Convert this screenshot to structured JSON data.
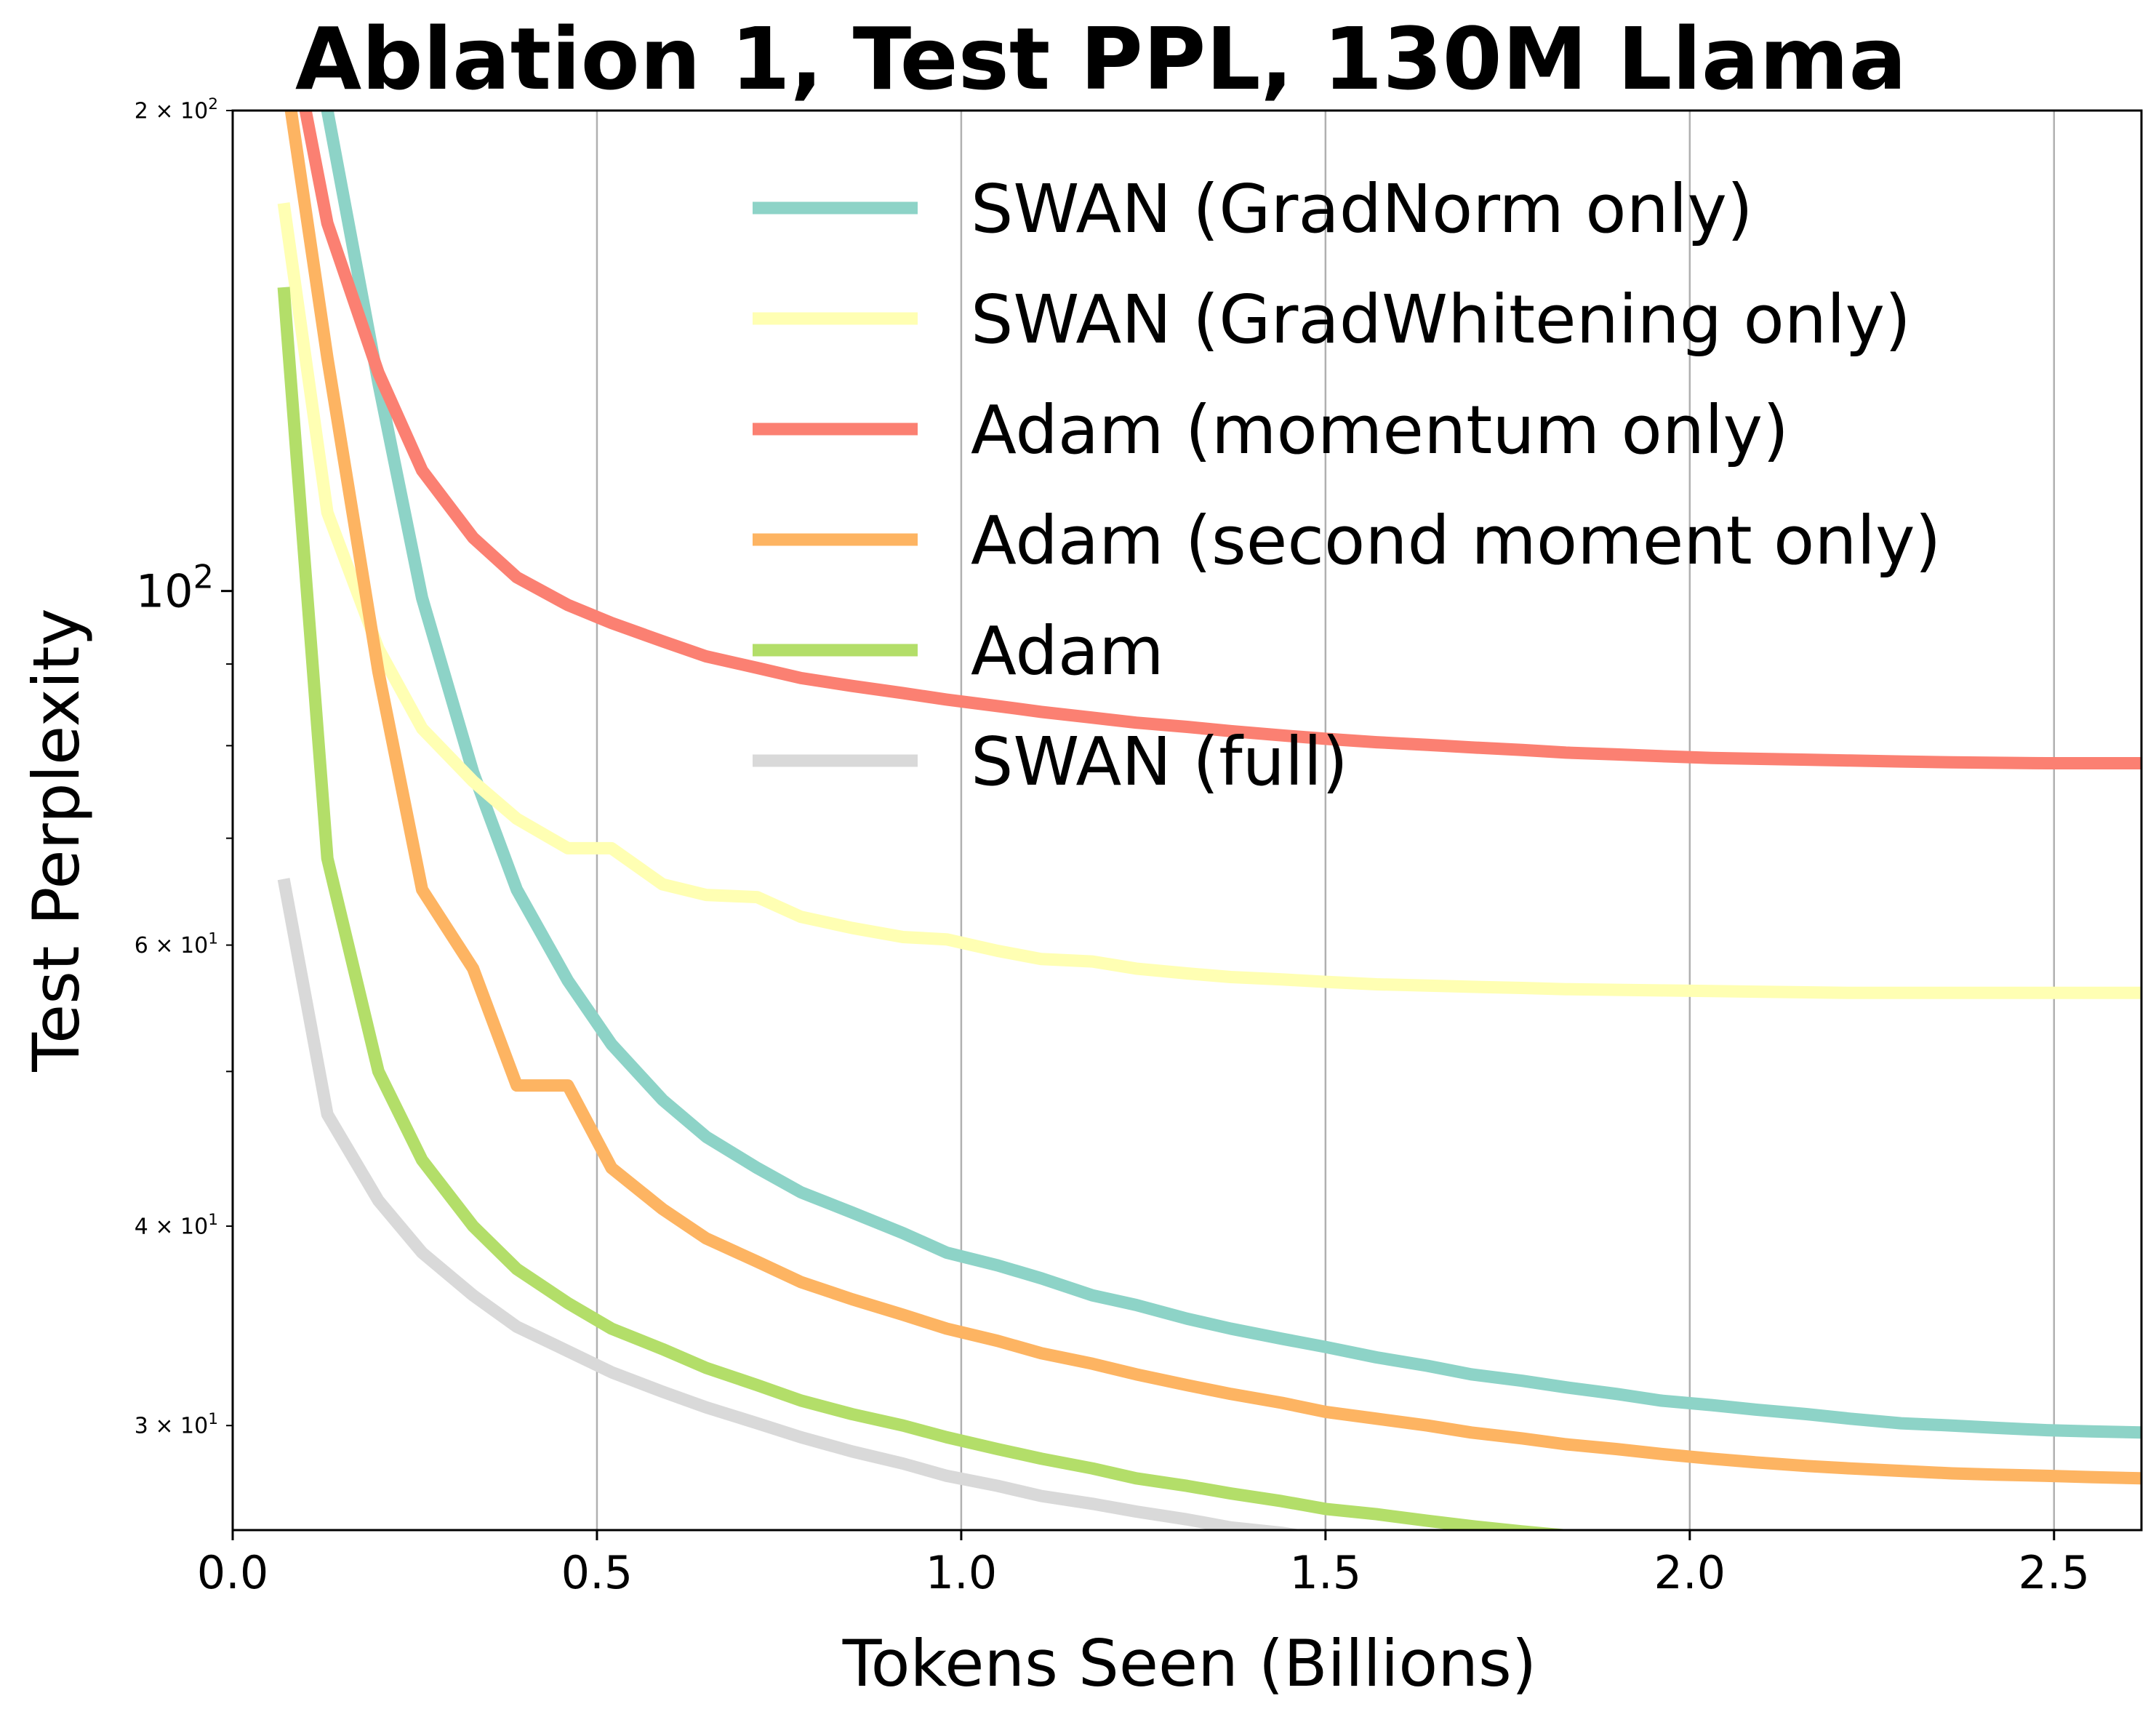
{
  "chart_data": {
    "type": "line",
    "title": "Ablation 1, Test PPL, 130M Llama",
    "xlabel": "Tokens Seen (Billions)",
    "ylabel": "Test Perplexity",
    "xlim": [
      0.0,
      2.62
    ],
    "ylim": [
      25.8,
      200
    ],
    "yscale": "log",
    "grid": "vertical",
    "legend_position": "upper-right",
    "x_ticks": [
      {
        "value": 0.0,
        "label": "0.0"
      },
      {
        "value": 0.5,
        "label": "0.5"
      },
      {
        "value": 1.0,
        "label": "1.0"
      },
      {
        "value": 1.5,
        "label": "1.5"
      },
      {
        "value": 2.0,
        "label": "2.0"
      },
      {
        "value": 2.5,
        "label": "2.5"
      }
    ],
    "y_ticks": [
      {
        "value": 200,
        "base": "2 × 10",
        "exp": "2",
        "major": false
      },
      {
        "value": 100,
        "base": "10",
        "exp": "2",
        "major": true
      },
      {
        "value": 60,
        "base": "6 × 10",
        "exp": "1",
        "major": false
      },
      {
        "value": 40,
        "base": "4 × 10",
        "exp": "1",
        "major": false
      },
      {
        "value": 30,
        "base": "3 × 10",
        "exp": "1",
        "major": false
      }
    ],
    "y_minor_tick_values": [
      50,
      70,
      80,
      90
    ],
    "series": [
      {
        "name": "SWAN (GradNorm only)",
        "color": "#8dd3c7",
        "x": [
          0.13,
          0.2,
          0.26,
          0.33,
          0.39,
          0.46,
          0.52,
          0.59,
          0.65,
          0.72,
          0.78,
          0.85,
          0.92,
          0.98,
          1.05,
          1.11,
          1.18,
          1.24,
          1.31,
          1.37,
          1.44,
          1.5,
          1.57,
          1.64,
          1.7,
          1.77,
          1.83,
          1.9,
          1.96,
          2.03,
          2.09,
          2.16,
          2.22,
          2.29,
          2.36,
          2.42,
          2.49,
          2.55,
          2.62
        ],
        "y": [
          200,
          135,
          99,
          77,
          65,
          57,
          52,
          48,
          45.5,
          43.5,
          42,
          40.8,
          39.6,
          38.5,
          37.8,
          37.1,
          36.2,
          35.7,
          35,
          34.5,
          34,
          33.6,
          33.1,
          32.7,
          32.3,
          32,
          31.7,
          31.4,
          31.1,
          30.9,
          30.7,
          30.5,
          30.3,
          30.1,
          30,
          29.9,
          29.8,
          29.75,
          29.7
        ]
      },
      {
        "name": "SWAN (GradWhitening only)",
        "color": "#ffffb3",
        "x": [
          0.07,
          0.13,
          0.2,
          0.26,
          0.33,
          0.39,
          0.46,
          0.52,
          0.59,
          0.65,
          0.72,
          0.78,
          0.85,
          0.92,
          0.98,
          1.05,
          1.11,
          1.18,
          1.24,
          1.31,
          1.37,
          1.44,
          1.5,
          1.57,
          1.64,
          1.7,
          1.77,
          1.83,
          1.9,
          1.96,
          2.03,
          2.09,
          2.16,
          2.22,
          2.29,
          2.36,
          2.42,
          2.49,
          2.55,
          2.62
        ],
        "y": [
          175,
          112,
          92,
          82,
          76,
          72,
          69,
          69,
          65.5,
          64.5,
          64.3,
          62.5,
          61.5,
          60.7,
          60.5,
          59.5,
          58.8,
          58.6,
          58,
          57.6,
          57.3,
          57.1,
          56.9,
          56.7,
          56.6,
          56.5,
          56.4,
          56.3,
          56.25,
          56.2,
          56.15,
          56.1,
          56.05,
          56,
          56,
          56,
          56,
          56,
          56,
          56
        ]
      },
      {
        "name": "Adam (momentum only)",
        "color": "#fb8072",
        "x": [
          0.1,
          0.13,
          0.2,
          0.26,
          0.33,
          0.39,
          0.46,
          0.52,
          0.59,
          0.65,
          0.72,
          0.78,
          0.85,
          0.92,
          0.98,
          1.05,
          1.11,
          1.18,
          1.24,
          1.31,
          1.37,
          1.44,
          1.5,
          1.57,
          1.64,
          1.7,
          1.77,
          1.83,
          1.9,
          1.96,
          2.03,
          2.09,
          2.16,
          2.22,
          2.29,
          2.36,
          2.42,
          2.49,
          2.55,
          2.62
        ],
        "y": [
          200,
          170,
          137,
          119,
          108,
          102,
          98,
          95.5,
          93,
          91,
          89.5,
          88.2,
          87.2,
          86.3,
          85.5,
          84.7,
          84,
          83.3,
          82.7,
          82.2,
          81.7,
          81.2,
          80.8,
          80.4,
          80.1,
          79.8,
          79.5,
          79.2,
          79,
          78.8,
          78.6,
          78.5,
          78.4,
          78.3,
          78.2,
          78.1,
          78.05,
          78,
          78,
          78
        ]
      },
      {
        "name": "Adam (second moment only)",
        "color": "#fdb462",
        "x": [
          0.08,
          0.13,
          0.2,
          0.26,
          0.33,
          0.39,
          0.46,
          0.52,
          0.59,
          0.65,
          0.72,
          0.78,
          0.85,
          0.92,
          0.98,
          1.05,
          1.11,
          1.18,
          1.24,
          1.31,
          1.37,
          1.44,
          1.5,
          1.57,
          1.64,
          1.7,
          1.77,
          1.83,
          1.9,
          1.96,
          2.03,
          2.09,
          2.16,
          2.22,
          2.29,
          2.36,
          2.42,
          2.49,
          2.55,
          2.62
        ],
        "y": [
          200,
          140,
          89,
          65,
          58,
          49,
          49,
          43.5,
          41,
          39.3,
          38,
          36.9,
          36,
          35.2,
          34.5,
          33.9,
          33.3,
          32.8,
          32.3,
          31.8,
          31.4,
          31,
          30.6,
          30.3,
          30,
          29.7,
          29.45,
          29.2,
          29,
          28.8,
          28.6,
          28.45,
          28.3,
          28.2,
          28.1,
          28,
          27.95,
          27.9,
          27.85,
          27.8
        ]
      },
      {
        "name": "Adam",
        "color": "#b3de69",
        "x": [
          0.07,
          0.13,
          0.2,
          0.26,
          0.33,
          0.39,
          0.46,
          0.52,
          0.59,
          0.65,
          0.72,
          0.78,
          0.85,
          0.92,
          0.98,
          1.05,
          1.11,
          1.18,
          1.24,
          1.31,
          1.37,
          1.44,
          1.5,
          1.57,
          1.64,
          1.7,
          1.77,
          1.83,
          1.9,
          1.96,
          2.03,
          2.09,
          2.16,
          2.22,
          2.29,
          2.36,
          2.42,
          2.49,
          2.55,
          2.62
        ],
        "y": [
          155,
          68,
          50,
          44,
          40,
          37.6,
          35.8,
          34.5,
          33.5,
          32.6,
          31.8,
          31.1,
          30.5,
          30,
          29.5,
          29,
          28.6,
          28.2,
          27.8,
          27.5,
          27.2,
          26.9,
          26.6,
          26.4,
          26.15,
          25.95,
          25.75,
          25.6,
          25.45,
          25.3,
          25.2,
          25.1,
          25,
          24.95,
          24.9,
          24.85,
          24.8,
          24.8,
          24.8,
          24.8
        ]
      },
      {
        "name": "SWAN (full)",
        "color": "#d9d9d9",
        "x": [
          0.07,
          0.13,
          0.2,
          0.26,
          0.33,
          0.39,
          0.46,
          0.52,
          0.59,
          0.65,
          0.72,
          0.78,
          0.85,
          0.92,
          0.98,
          1.05,
          1.11,
          1.18,
          1.24,
          1.31,
          1.37,
          1.44,
          1.5,
          1.57,
          1.64,
          1.7,
          1.77,
          1.83,
          1.9,
          1.96,
          2.03,
          2.09,
          2.16,
          2.22,
          2.29,
          2.36,
          2.42,
          2.49,
          2.55,
          2.62
        ],
        "y": [
          66,
          47,
          41.5,
          38.5,
          36.2,
          34.6,
          33.4,
          32.4,
          31.5,
          30.8,
          30.1,
          29.5,
          28.9,
          28.4,
          27.9,
          27.5,
          27.1,
          26.8,
          26.5,
          26.2,
          25.9,
          25.7,
          25.45,
          25.25,
          25.05,
          24.9,
          24.75,
          24.6,
          24.48,
          24.36,
          24.26,
          24.17,
          24.1,
          24.03,
          23.98,
          23.93,
          23.9,
          23.87,
          23.85,
          23.84
        ]
      }
    ]
  }
}
